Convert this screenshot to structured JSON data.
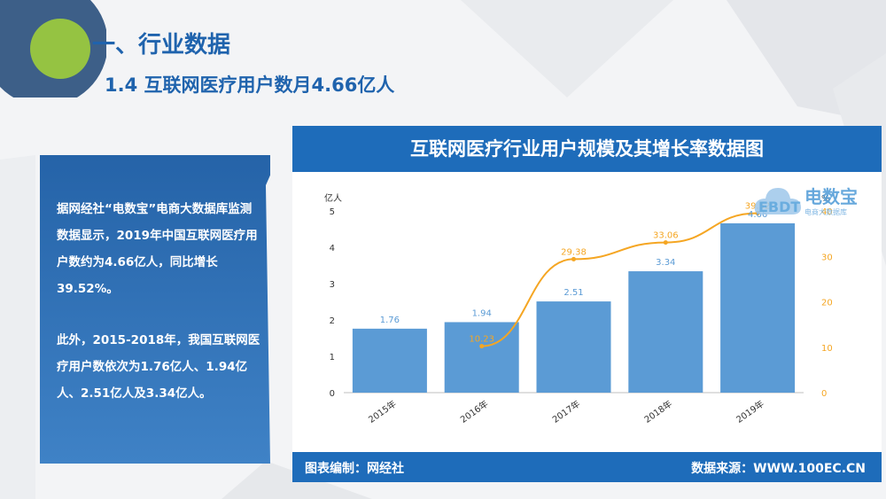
{
  "slide": {
    "title": "一、行业数据",
    "subtitle": "1.4 互联网医疗用户数月4.66亿人"
  },
  "text_panel": {
    "paragraph_1": "据网经社“电数宝”电商大数据库监测数据显示，2019年中国互联网医疗用户数约为4.66亿人，同比增长39.52%。",
    "paragraph_2": "此外，2015-2018年，我国互联网医疗用户数依次为1.76亿人、1.94亿人、2.51亿人及3.34亿人。"
  },
  "chart_panel": {
    "header": "互联网医疗行业用户规模及其增长率数据图",
    "footer_left": "图表编制：网经社",
    "footer_right": "数据来源：WWW.100EC.CN"
  },
  "watermark": {
    "brand": "电数宝",
    "tagline": "电商大数据库",
    "mark": "EBDT"
  },
  "colors": {
    "brand_blue": "#1e6cba",
    "bar_blue": "#5b9bd5",
    "line_orange": "#f5a623",
    "title_blue": "#1f63ad"
  },
  "chart_data": {
    "type": "bar",
    "categories": [
      "2015年",
      "2016年",
      "2017年",
      "2018年",
      "2019年"
    ],
    "ylabel": "亿人",
    "ylabel_right": "%",
    "ylim": [
      0,
      5
    ],
    "ylim_right": [
      0,
      40
    ],
    "yticks": [
      "0",
      "1",
      "2",
      "3",
      "4",
      "5"
    ],
    "yticks_right": [
      "0",
      "10",
      "20",
      "30",
      "40"
    ],
    "grid": false,
    "series": [
      {
        "type": "bar",
        "axis": "left",
        "values": [
          1.76,
          1.94,
          2.51,
          3.34,
          4.66
        ],
        "labels": [
          "1.76",
          "1.94",
          "2.51",
          "3.34",
          "4.66"
        ]
      },
      {
        "type": "line",
        "axis": "right",
        "values": [
          null,
          10.23,
          29.38,
          33.06,
          39.52
        ],
        "labels": [
          "",
          "10.23",
          "29.38",
          "33.06",
          "39.52"
        ]
      }
    ]
  }
}
